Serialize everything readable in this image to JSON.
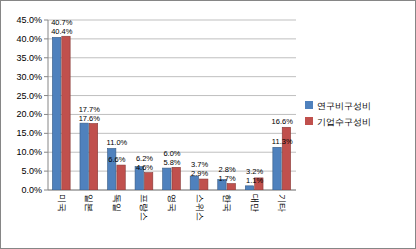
{
  "chart_data": {
    "type": "bar",
    "categories": [
      "미국",
      "일본",
      "독일",
      "프랑스",
      "영국",
      "스위스",
      "한국",
      "대만",
      "기타"
    ],
    "series": [
      {
        "name": "연구비구성비",
        "color": "#4f81bd",
        "values": [
          40.4,
          17.7,
          11.0,
          6.2,
          5.8,
          3.7,
          2.8,
          1.1,
          11.3
        ],
        "value_labels": [
          "40.4%",
          "17.7%",
          "11.0%",
          "6.2%",
          "5.8%",
          "3.7%",
          "2.8%",
          "1.1%",
          "11.3%"
        ]
      },
      {
        "name": "기업수구성비",
        "color": "#c0504d",
        "values": [
          40.7,
          17.6,
          6.6,
          4.6,
          6.0,
          2.9,
          1.7,
          3.2,
          16.6
        ],
        "value_labels": [
          "40.7%",
          "17.6%",
          "6.6%",
          "4.6%",
          "6.0%",
          "2.9%",
          "1.7%",
          "3.2%",
          "16.6%"
        ]
      }
    ],
    "ylim": [
      0,
      45
    ],
    "yticks": [
      {
        "value": 0,
        "label": "0.0%"
      },
      {
        "value": 5,
        "label": "5.0%"
      },
      {
        "value": 10,
        "label": "10.0%"
      },
      {
        "value": 15,
        "label": "15.0%"
      },
      {
        "value": 20,
        "label": "20.0%"
      },
      {
        "value": 25,
        "label": "25.0%"
      },
      {
        "value": 30,
        "label": "30.0%"
      },
      {
        "value": 35,
        "label": "35.0%"
      },
      {
        "value": 40,
        "label": "40.0%"
      },
      {
        "value": 45,
        "label": "45.0%"
      }
    ],
    "grid": true,
    "legend": "right",
    "data_labels": true
  }
}
